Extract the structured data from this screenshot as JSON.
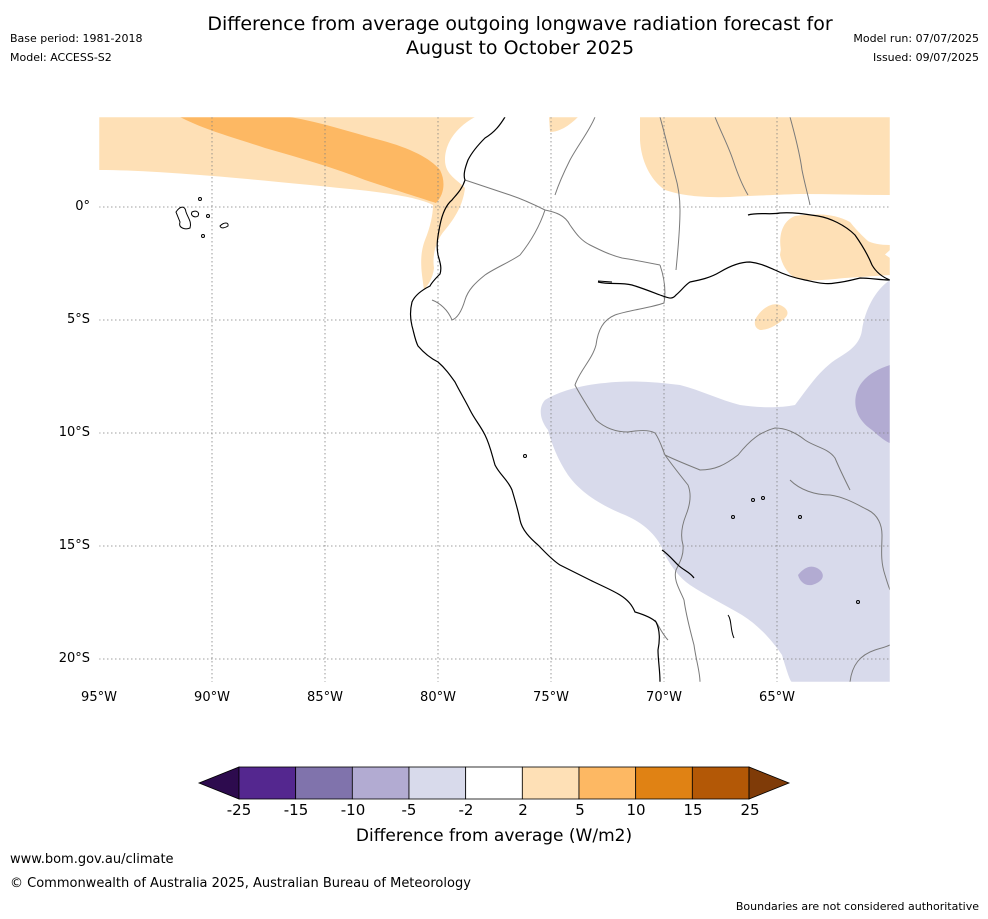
{
  "header": {
    "title_line1": "Difference from average outgoing longwave radiation forecast for",
    "title_line2": "August to October 2025",
    "base_period": "Base period: 1981-2018",
    "model": "Model: ACCESS-S2",
    "model_run": "Model run: 07/07/2025",
    "issued": "Issued: 09/07/2025"
  },
  "map": {
    "projection": "plate-carree",
    "lon_range": [
      -95,
      -60
    ],
    "lat_range": [
      -21,
      4
    ],
    "lat_labels": [
      "0°",
      "5°S",
      "10°S",
      "15°S",
      "20°S"
    ],
    "lon_labels": [
      "95°W",
      "90°W",
      "85°W",
      "80°W",
      "75°W",
      "70°W",
      "65°W"
    ],
    "gridlines": "dotted"
  },
  "legend": {
    "title": "Difference from average (W/m2)",
    "ticks": [
      "-25",
      "-15",
      "-10",
      "-5",
      "-2",
      "2",
      "5",
      "10",
      "15",
      "25"
    ],
    "colors": [
      "#2d0b4e",
      "#54278f",
      "#8073ac",
      "#b2abd2",
      "#d8daeb",
      "#ffffff",
      "#fee0b6",
      "#fdb863",
      "#e08214",
      "#b35806",
      "#7f3b08"
    ],
    "extend": "both"
  },
  "footer": {
    "url": "www.bom.gov.au/climate",
    "copyright": "© Commonwealth of Australia 2025, Australian Bureau of Meteorology",
    "disclaimer": "Boundaries are not considered authoritative"
  }
}
